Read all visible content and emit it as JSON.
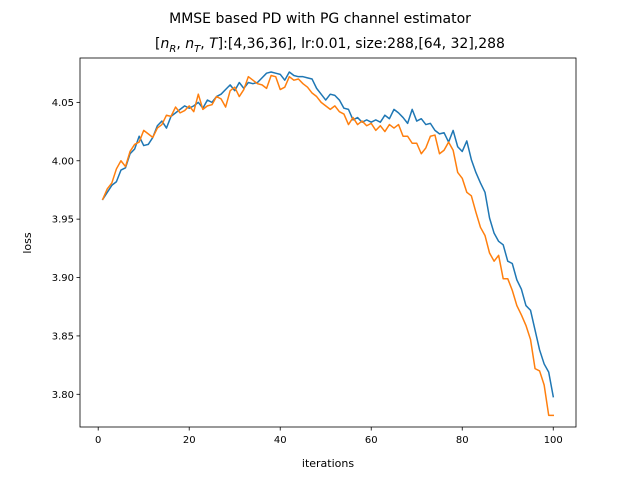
{
  "chart_data": {
    "type": "line",
    "title": "MMSE based PD with PG channel estimator",
    "subtitle": "[n_R, n_T, T]:[4,36,36], lr:0.01, size:288,[64, 32],288",
    "subtitle_math": [
      "n",
      "R",
      "n",
      "T",
      "T"
    ],
    "subtitle_prefix": "[",
    "subtitle_rest": "]:[4,36,36], lr:0.01, size:288,[64, 32],288",
    "xlabel": "iterations",
    "ylabel": "loss",
    "xlim": [
      -4,
      105
    ],
    "ylim": [
      3.772,
      4.088
    ],
    "xticks": [
      0,
      20,
      40,
      60,
      80,
      100
    ],
    "yticks": [
      3.8,
      3.85,
      3.9,
      3.95,
      4.0,
      4.05
    ],
    "ytick_labels": [
      "3.80",
      "3.85",
      "3.90",
      "3.95",
      "4.00",
      "4.05"
    ],
    "legend": false,
    "grid": false,
    "series": [
      {
        "color": "#1f77b4",
        "x": [
          1,
          2,
          3,
          4,
          5,
          6,
          7,
          8,
          9,
          10,
          11,
          12,
          13,
          14,
          15,
          16,
          17,
          18,
          19,
          20,
          21,
          22,
          23,
          24,
          25,
          26,
          27,
          28,
          29,
          30,
          31,
          32,
          33,
          34,
          35,
          36,
          37,
          38,
          39,
          40,
          41,
          42,
          43,
          44,
          45,
          46,
          47,
          48,
          49,
          50,
          51,
          52,
          53,
          54,
          55,
          56,
          57,
          58,
          59,
          60,
          61,
          62,
          63,
          64,
          65,
          66,
          67,
          68,
          69,
          70,
          71,
          72,
          73,
          74,
          75,
          76,
          77,
          78,
          79,
          80,
          81,
          82,
          83,
          84,
          85,
          86,
          87,
          88,
          89,
          90,
          91,
          92,
          93,
          94,
          95,
          96,
          97,
          98,
          99,
          100
        ],
        "y": [
          3.967,
          3.973,
          3.979,
          3.982,
          3.992,
          3.994,
          4.006,
          4.01,
          4.021,
          4.013,
          4.014,
          4.02,
          4.03,
          4.034,
          4.028,
          4.038,
          4.041,
          4.044,
          4.047,
          4.045,
          4.047,
          4.05,
          4.045,
          4.052,
          4.05,
          4.055,
          4.057,
          4.061,
          4.065,
          4.06,
          4.067,
          4.062,
          4.067,
          4.066,
          4.067,
          4.071,
          4.075,
          4.076,
          4.075,
          4.074,
          4.069,
          4.076,
          4.073,
          4.072,
          4.072,
          4.071,
          4.07,
          4.062,
          4.057,
          4.052,
          4.057,
          4.056,
          4.052,
          4.045,
          4.044,
          4.035,
          4.037,
          4.033,
          4.035,
          4.033,
          4.035,
          4.033,
          4.039,
          4.036,
          4.044,
          4.041,
          4.037,
          4.032,
          4.044,
          4.034,
          4.036,
          4.031,
          4.032,
          4.026,
          4.023,
          4.024,
          4.016,
          4.026,
          4.012,
          4.008,
          4.017,
          4.001,
          3.99,
          3.981,
          3.973,
          3.951,
          3.938,
          3.931,
          3.928,
          3.914,
          3.912,
          3.898,
          3.89,
          3.876,
          3.872,
          3.855,
          3.838,
          3.826,
          3.819,
          3.798
        ]
      },
      {
        "color": "#ff7f0e",
        "x": [
          1,
          2,
          3,
          4,
          5,
          6,
          7,
          8,
          9,
          10,
          11,
          12,
          13,
          14,
          15,
          16,
          17,
          18,
          19,
          20,
          21,
          22,
          23,
          24,
          25,
          26,
          27,
          28,
          29,
          30,
          31,
          32,
          33,
          34,
          35,
          36,
          37,
          38,
          39,
          40,
          41,
          42,
          43,
          44,
          45,
          46,
          47,
          48,
          49,
          50,
          51,
          52,
          53,
          54,
          55,
          56,
          57,
          58,
          59,
          60,
          61,
          62,
          63,
          64,
          65,
          66,
          67,
          68,
          69,
          70,
          71,
          72,
          73,
          74,
          75,
          76,
          77,
          78,
          79,
          80,
          81,
          82,
          83,
          84,
          85,
          86,
          87,
          88,
          89,
          90,
          91,
          92,
          93,
          94,
          95,
          96,
          97,
          98,
          99,
          100
        ],
        "y": [
          3.967,
          3.976,
          3.981,
          3.993,
          4.0,
          3.995,
          4.008,
          4.014,
          4.016,
          4.026,
          4.023,
          4.02,
          4.028,
          4.031,
          4.039,
          4.038,
          4.046,
          4.041,
          4.043,
          4.047,
          4.042,
          4.057,
          4.044,
          4.047,
          4.048,
          4.055,
          4.053,
          4.046,
          4.06,
          4.063,
          4.055,
          4.061,
          4.072,
          4.069,
          4.066,
          4.065,
          4.062,
          4.073,
          4.072,
          4.061,
          4.063,
          4.072,
          4.069,
          4.07,
          4.066,
          4.063,
          4.058,
          4.055,
          4.05,
          4.047,
          4.044,
          4.047,
          4.042,
          4.04,
          4.031,
          4.037,
          4.031,
          4.034,
          4.03,
          4.032,
          4.026,
          4.03,
          4.025,
          4.031,
          4.028,
          4.031,
          4.021,
          4.021,
          4.015,
          4.015,
          4.006,
          4.011,
          4.021,
          4.022,
          4.006,
          4.009,
          4.016,
          4.009,
          3.99,
          3.985,
          3.973,
          3.97,
          3.956,
          3.943,
          3.936,
          3.921,
          3.914,
          3.919,
          3.899,
          3.899,
          3.889,
          3.876,
          3.868,
          3.859,
          3.847,
          3.822,
          3.82,
          3.808,
          3.782,
          3.782
        ]
      }
    ]
  }
}
